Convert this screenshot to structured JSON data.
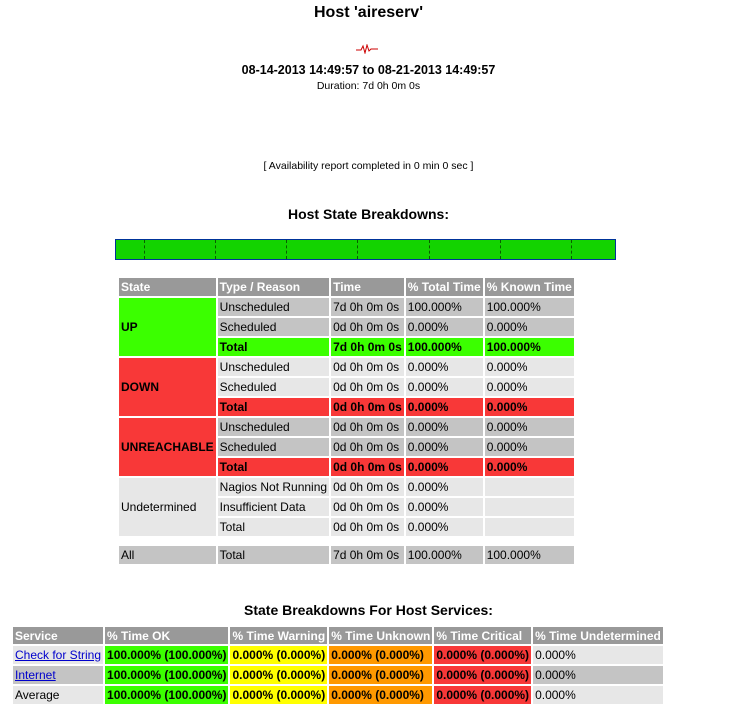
{
  "header": {
    "title": "Host 'aireserv'",
    "range": "08-14-2013 14:49:57 to 08-21-2013 14:49:57",
    "duration": "Duration: 7d 0h 0m 0s",
    "completed": "[ Availability report completed in 0 min 0 sec ]"
  },
  "colors": {
    "up": "#3bff00",
    "down": "#f83838",
    "warning": "#ffff00",
    "unknown": "#ff9900",
    "header_bg": "#999999",
    "trend_bar": "#13d300"
  },
  "breakdown": {
    "heading": "Host State Breakdowns:",
    "columns": [
      "State",
      "Type / Reason",
      "Time",
      "% Total Time",
      "% Known Time"
    ],
    "up": {
      "label": "UP",
      "rows": [
        [
          "Unscheduled",
          "7d 0h 0m 0s",
          "100.000%",
          "100.000%"
        ],
        [
          "Scheduled",
          "0d 0h 0m 0s",
          "0.000%",
          "0.000%"
        ],
        [
          "Total",
          "7d 0h 0m 0s",
          "100.000%",
          "100.000%"
        ]
      ]
    },
    "down": {
      "label": "DOWN",
      "rows": [
        [
          "Unscheduled",
          "0d 0h 0m 0s",
          "0.000%",
          "0.000%"
        ],
        [
          "Scheduled",
          "0d 0h 0m 0s",
          "0.000%",
          "0.000%"
        ],
        [
          "Total",
          "0d 0h 0m 0s",
          "0.000%",
          "0.000%"
        ]
      ]
    },
    "unreachable": {
      "label": "UNREACHABLE",
      "rows": [
        [
          "Unscheduled",
          "0d 0h 0m 0s",
          "0.000%",
          "0.000%"
        ],
        [
          "Scheduled",
          "0d 0h 0m 0s",
          "0.000%",
          "0.000%"
        ],
        [
          "Total",
          "0d 0h 0m 0s",
          "0.000%",
          "0.000%"
        ]
      ]
    },
    "undetermined": {
      "label": "Undetermined",
      "rows": [
        [
          "Nagios Not Running",
          "0d 0h 0m 0s",
          "0.000%"
        ],
        [
          "Insufficient Data",
          "0d 0h 0m 0s",
          "0.000%"
        ],
        [
          "Total",
          "0d 0h 0m 0s",
          "0.000%"
        ]
      ]
    },
    "all": {
      "label": "All",
      "row": [
        "Total",
        "7d 0h 0m 0s",
        "100.000%",
        "100.000%"
      ]
    }
  },
  "services": {
    "heading": "State Breakdowns For Host Services:",
    "columns": [
      "Service",
      "% Time OK",
      "% Time Warning",
      "% Time Unknown",
      "% Time Critical",
      "% Time Undetermined"
    ],
    "rows": [
      {
        "name": "Check for String",
        "ok": "100.000% (100.000%)",
        "warning": "0.000% (0.000%)",
        "unknown": "0.000% (0.000%)",
        "critical": "0.000% (0.000%)",
        "undetermined": "0.000%"
      },
      {
        "name": "Internet",
        "ok": "100.000% (100.000%)",
        "warning": "0.000% (0.000%)",
        "unknown": "0.000% (0.000%)",
        "critical": "0.000% (0.000%)",
        "undetermined": "0.000%"
      }
    ],
    "average": {
      "name": "Average",
      "ok": "100.000% (100.000%)",
      "warning": "0.000% (0.000%)",
      "unknown": "0.000% (0.000%)",
      "critical": "0.000% (0.000%)",
      "undetermined": "0.000%"
    }
  }
}
